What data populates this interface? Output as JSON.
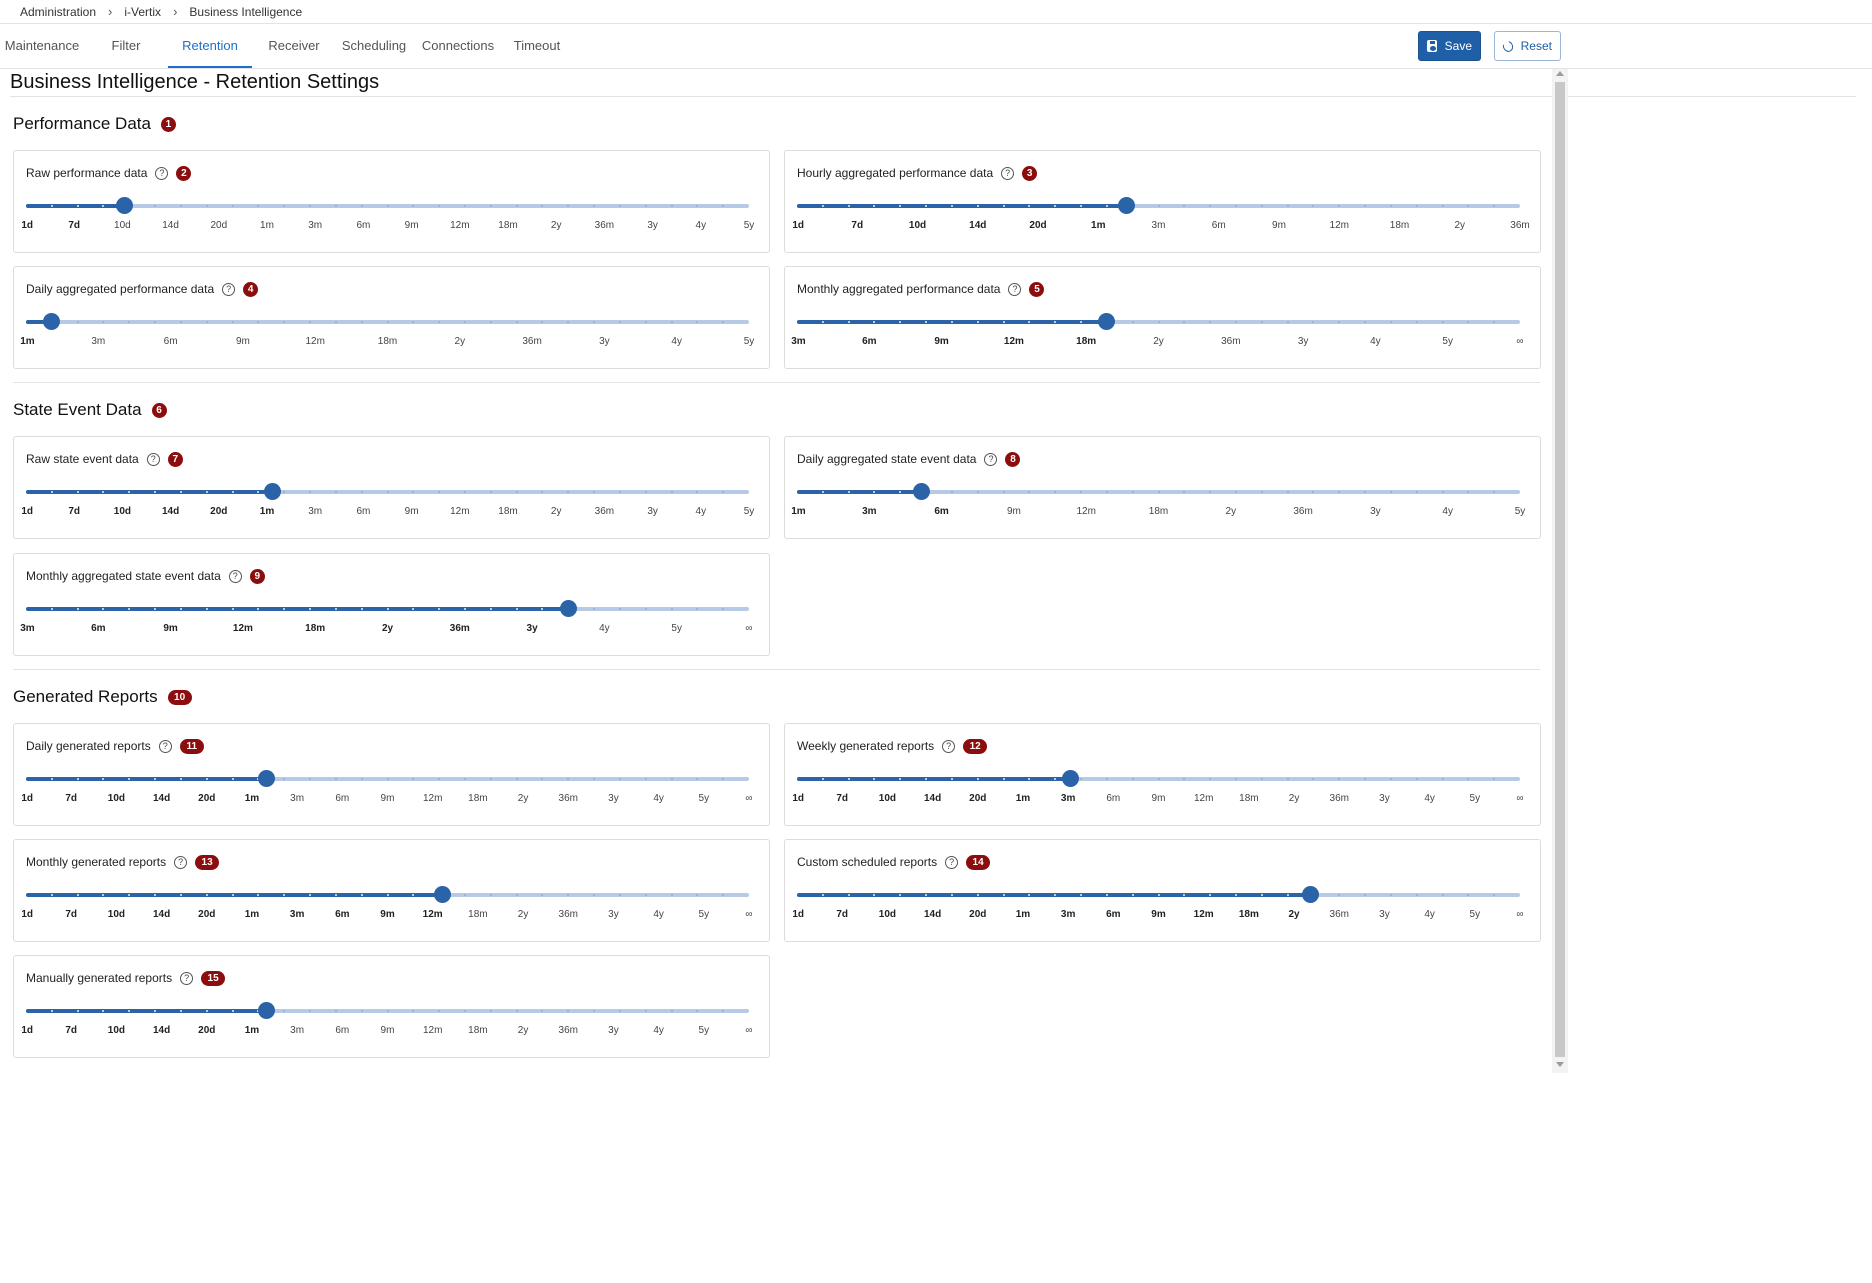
{
  "breadcrumb": [
    "Administration",
    "i-Vertix",
    "Business Intelligence"
  ],
  "tabs": [
    {
      "label": "Maintenance",
      "active": false
    },
    {
      "label": "Filter",
      "active": false
    },
    {
      "label": "Retention",
      "active": true
    },
    {
      "label": "Receiver",
      "active": false
    },
    {
      "label": "Scheduling",
      "active": false
    },
    {
      "label": "Connections",
      "active": false
    },
    {
      "label": "Timeout",
      "active": false
    }
  ],
  "toolbar": {
    "save_label": "Save",
    "reset_label": "Reset"
  },
  "page_title": "Business Intelligence - Retention Settings",
  "colors": {
    "accent": "#1f6fc9",
    "slider": "#2b63a8",
    "badge": "#8b0d0d"
  },
  "sections": [
    {
      "title": "Performance Data",
      "badge": "1",
      "sliders": [
        {
          "label": "Raw performance data",
          "badge": "2",
          "value": "7d",
          "fraction": 0.135,
          "ticks": [
            "1d",
            "7d",
            "10d",
            "14d",
            "20d",
            "1m",
            "3m",
            "6m",
            "9m",
            "12m",
            "18m",
            "2y",
            "36m",
            "3y",
            "4y",
            "5y"
          ]
        },
        {
          "label": "Hourly aggregated performance data",
          "badge": "3",
          "value": "1m",
          "fraction": 0.455,
          "ticks": [
            "1d",
            "7d",
            "10d",
            "14d",
            "20d",
            "1m",
            "3m",
            "6m",
            "9m",
            "12m",
            "18m",
            "2y",
            "36m"
          ]
        },
        {
          "label": "Daily aggregated performance data",
          "badge": "4",
          "value": "1m",
          "fraction": 0.035,
          "ticks": [
            "1m",
            "3m",
            "6m",
            "9m",
            "12m",
            "18m",
            "2y",
            "36m",
            "3y",
            "4y",
            "5y"
          ]
        },
        {
          "label": "Monthly aggregated performance data",
          "badge": "5",
          "value": "18m",
          "fraction": 0.428,
          "ticks": [
            "3m",
            "6m",
            "9m",
            "12m",
            "18m",
            "2y",
            "36m",
            "3y",
            "4y",
            "5y",
            "∞"
          ]
        }
      ]
    },
    {
      "title": "State Event Data",
      "badge": "6",
      "sliders": [
        {
          "label": "Raw state event data",
          "badge": "7",
          "value": "1m",
          "fraction": 0.34,
          "ticks": [
            "1d",
            "7d",
            "10d",
            "14d",
            "20d",
            "1m",
            "3m",
            "6m",
            "9m",
            "12m",
            "18m",
            "2y",
            "36m",
            "3y",
            "4y",
            "5y"
          ]
        },
        {
          "label": "Daily aggregated state event data",
          "badge": "8",
          "value": "6m",
          "fraction": 0.172,
          "ticks": [
            "1m",
            "3m",
            "6m",
            "9m",
            "12m",
            "18m",
            "2y",
            "36m",
            "3y",
            "4y",
            "5y"
          ]
        },
        {
          "label": "Monthly aggregated state event data",
          "badge": "9",
          "value": "3y",
          "fraction": 0.749,
          "ticks": [
            "3m",
            "6m",
            "9m",
            "12m",
            "18m",
            "2y",
            "36m",
            "3y",
            "4y",
            "5y",
            "∞"
          ]
        }
      ]
    },
    {
      "title": "Generated Reports",
      "badge": "10",
      "sliders": [
        {
          "label": "Daily generated reports",
          "badge": "11",
          "value": "1m",
          "fraction": 0.332,
          "ticks": [
            "1d",
            "7d",
            "10d",
            "14d",
            "20d",
            "1m",
            "3m",
            "6m",
            "9m",
            "12m",
            "18m",
            "2y",
            "36m",
            "3y",
            "4y",
            "5y",
            "∞"
          ]
        },
        {
          "label": "Weekly generated reports",
          "badge": "12",
          "value": "3m",
          "fraction": 0.377,
          "ticks": [
            "1d",
            "7d",
            "10d",
            "14d",
            "20d",
            "1m",
            "3m",
            "6m",
            "9m",
            "12m",
            "18m",
            "2y",
            "36m",
            "3y",
            "4y",
            "5y",
            "∞"
          ]
        },
        {
          "label": "Monthly generated reports",
          "badge": "13",
          "value": "12m",
          "fraction": 0.576,
          "ticks": [
            "1d",
            "7d",
            "10d",
            "14d",
            "20d",
            "1m",
            "3m",
            "6m",
            "9m",
            "12m",
            "18m",
            "2y",
            "36m",
            "3y",
            "4y",
            "5y",
            "∞"
          ]
        },
        {
          "label": "Custom scheduled reports",
          "badge": "14",
          "value": "2y",
          "fraction": 0.709,
          "ticks": [
            "1d",
            "7d",
            "10d",
            "14d",
            "20d",
            "1m",
            "3m",
            "6m",
            "9m",
            "12m",
            "18m",
            "2y",
            "36m",
            "3y",
            "4y",
            "5y",
            "∞"
          ]
        },
        {
          "label": "Manually generated reports",
          "badge": "15",
          "value": "1m",
          "fraction": 0.332,
          "ticks": [
            "1d",
            "7d",
            "10d",
            "14d",
            "20d",
            "1m",
            "3m",
            "6m",
            "9m",
            "12m",
            "18m",
            "2y",
            "36m",
            "3y",
            "4y",
            "5y",
            "∞"
          ]
        }
      ]
    }
  ]
}
